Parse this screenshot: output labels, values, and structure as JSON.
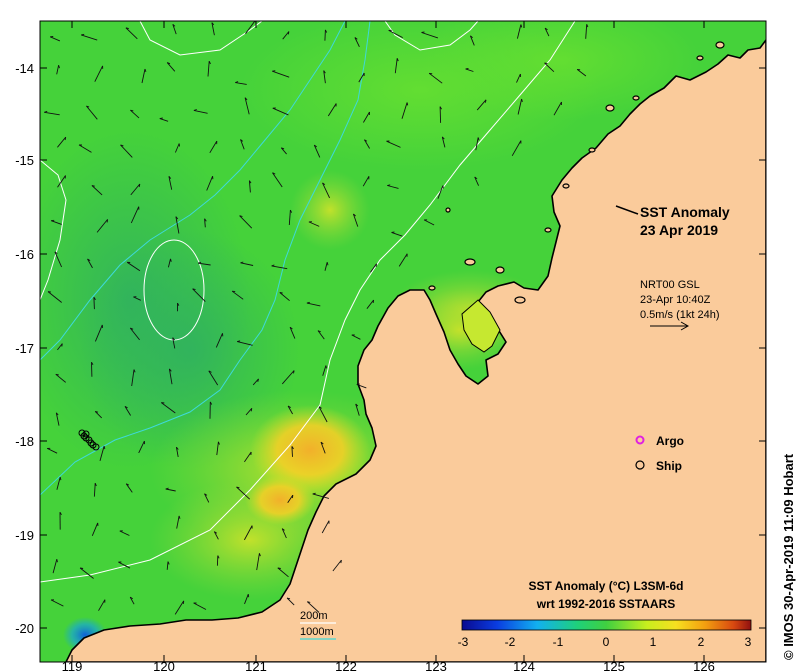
{
  "title": {
    "line1": "SST Anomaly",
    "line2": "23 Apr 2019"
  },
  "current_info": {
    "line1": "NRT00 GSL",
    "line2": "23-Apr 10:40Z",
    "line3": "0.5m/s (1kt 24h)"
  },
  "legend": {
    "argo": "Argo",
    "ship": "Ship"
  },
  "colorbar": {
    "title": "SST Anomaly (°C) L3SM-6d",
    "subtitle": "wrt 1992-2016 SSTAARS",
    "ticks": [
      "-3",
      "-2",
      "-1",
      "0",
      "1",
      "2",
      "3"
    ]
  },
  "isobaths": {
    "label_200": "200m",
    "label_1000": "1000m"
  },
  "x_axis": {
    "ticks": [
      "119",
      "120",
      "121",
      "122",
      "123",
      "124",
      "125",
      "126"
    ]
  },
  "y_axis": {
    "ticks": [
      "-14",
      "-15",
      "-16",
      "-17",
      "-18",
      "-19",
      "-20"
    ]
  },
  "credit": "© IMOS 30-Apr-2019 11:09 Hobart",
  "colors": {
    "land": "#FACB9B",
    "sea_base": "#45D23A",
    "isobath_200": "#FFFFFF",
    "isobath_1000": "#3ED9D9",
    "argo": "#E020E0"
  }
}
